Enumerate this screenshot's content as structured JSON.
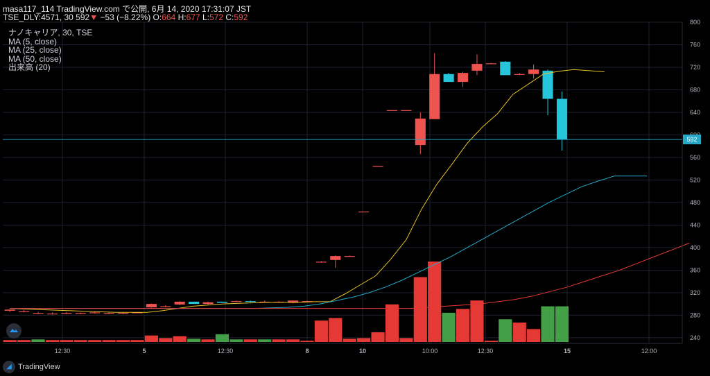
{
  "header": {
    "line1": "masa117_114 TradingView.com で公開, 6月 14, 2020 17:31:07 JST",
    "symbol": "TSE_DLY:4571, 30",
    "last": "592",
    "change": "−53 (−8.22%)",
    "o_label": "O:",
    "o": "664",
    "h_label": "H:",
    "h": "677",
    "l_label": "L:",
    "l": "572",
    "c_label": "C:",
    "c": "592"
  },
  "legend": [
    "ナノキャリア, 30, TSE",
    "MA (5, close)",
    "MA (25, close)",
    "MA (50, close)",
    "出来高 (20)"
  ],
  "footer": {
    "brand": "TradingView"
  },
  "colors": {
    "up": "#ef5350",
    "down": "#26c6da",
    "vol_up": "#e53935",
    "vol_down": "#43a047",
    "ma5": "#e6c229",
    "ma25": "#26a9c9",
    "ma50": "#e53935",
    "grid": "#1e2230",
    "last_line": "#26a9c9"
  },
  "chart_data": {
    "type": "candlestick",
    "ylim": [
      230,
      800
    ],
    "y_ticks": [
      240,
      280,
      320,
      360,
      400,
      440,
      480,
      520,
      560,
      600,
      640,
      680,
      720,
      760,
      800
    ],
    "x_tick_labels": [
      "12:30",
      "5",
      "12:30",
      "8",
      "10",
      "10:00",
      "12:30",
      "15",
      "12:00"
    ],
    "last_price": "592",
    "candles": [
      {
        "o": 288,
        "h": 290,
        "l": 286,
        "c": 290
      },
      {
        "o": 287,
        "h": 289,
        "l": 285,
        "c": 287
      },
      {
        "o": 284,
        "h": 286,
        "l": 282,
        "c": 284
      },
      {
        "o": 283,
        "h": 285,
        "l": 281,
        "c": 283
      },
      {
        "o": 284,
        "h": 286,
        "l": 282,
        "c": 284
      },
      {
        "o": 284,
        "h": 285,
        "l": 282,
        "c": 284
      },
      {
        "o": 285,
        "h": 286,
        "l": 283,
        "c": 285
      },
      {
        "o": 284,
        "h": 286,
        "l": 282,
        "c": 284
      },
      {
        "o": 284,
        "h": 286,
        "l": 282,
        "c": 284
      },
      {
        "o": 285,
        "h": 286,
        "l": 284,
        "c": 285
      },
      {
        "o": 294,
        "h": 301,
        "l": 293,
        "c": 300
      },
      {
        "o": 296,
        "h": 298,
        "l": 295,
        "c": 296
      },
      {
        "o": 299,
        "h": 305,
        "l": 298,
        "c": 304
      },
      {
        "o": 304,
        "h": 304,
        "l": 300,
        "c": 300
      },
      {
        "o": 300,
        "h": 304,
        "l": 299,
        "c": 303
      },
      {
        "o": 304,
        "h": 304,
        "l": 302,
        "c": 302
      },
      {
        "o": 305,
        "h": 306,
        "l": 304,
        "c": 305
      },
      {
        "o": 305,
        "h": 306,
        "l": 303,
        "c": 304
      },
      {
        "o": 304,
        "h": 306,
        "l": 303,
        "c": 304
      },
      {
        "o": 303,
        "h": 305,
        "l": 302,
        "c": 304
      },
      {
        "o": 302,
        "h": 306,
        "l": 301,
        "c": 306
      },
      {
        "o": 305,
        "h": 306,
        "l": 304,
        "c": 305
      },
      {
        "o": 374,
        "h": 376,
        "l": 373,
        "c": 375
      },
      {
        "o": 378,
        "h": 386,
        "l": 364,
        "c": 385
      },
      {
        "o": 385,
        "h": 386,
        "l": 385,
        "c": 385
      },
      {
        "o": 464,
        "h": 464,
        "l": 464,
        "c": 464
      },
      {
        "o": 545,
        "h": 545,
        "l": 545,
        "c": 545
      },
      {
        "o": 644,
        "h": 644,
        "l": 644,
        "c": 644
      },
      {
        "o": 644,
        "h": 644,
        "l": 644,
        "c": 644
      },
      {
        "o": 582,
        "h": 640,
        "l": 566,
        "c": 629
      },
      {
        "o": 628,
        "h": 745,
        "l": 628,
        "c": 708
      },
      {
        "o": 708,
        "h": 710,
        "l": 694,
        "c": 694
      },
      {
        "o": 694,
        "h": 712,
        "l": 685,
        "c": 710
      },
      {
        "o": 714,
        "h": 743,
        "l": 706,
        "c": 726
      },
      {
        "o": 727,
        "h": 728,
        "l": 727,
        "c": 727
      },
      {
        "o": 730,
        "h": 731,
        "l": 706,
        "c": 706
      },
      {
        "o": 708,
        "h": 710,
        "l": 706,
        "c": 708
      },
      {
        "o": 708,
        "h": 725,
        "l": 700,
        "c": 716
      },
      {
        "o": 714,
        "h": 716,
        "l": 635,
        "c": 664
      },
      {
        "o": 664,
        "h": 677,
        "l": 572,
        "c": 592
      }
    ],
    "volume": [
      {
        "v": 3,
        "up": true
      },
      {
        "v": 3,
        "up": true
      },
      {
        "v": 4,
        "up": false
      },
      {
        "v": 3,
        "up": true
      },
      {
        "v": 3,
        "up": true
      },
      {
        "v": 3,
        "up": true
      },
      {
        "v": 3,
        "up": true
      },
      {
        "v": 3,
        "up": true
      },
      {
        "v": 3,
        "up": true
      },
      {
        "v": 3,
        "up": true
      },
      {
        "v": 10,
        "up": true
      },
      {
        "v": 6,
        "up": true
      },
      {
        "v": 9,
        "up": true
      },
      {
        "v": 5,
        "up": false
      },
      {
        "v": 4,
        "up": true
      },
      {
        "v": 12,
        "up": false
      },
      {
        "v": 4,
        "up": false
      },
      {
        "v": 4,
        "up": true
      },
      {
        "v": 4,
        "up": false
      },
      {
        "v": 4,
        "up": true
      },
      {
        "v": 4,
        "up": true
      },
      {
        "v": 2,
        "up": true
      },
      {
        "v": 33,
        "up": true
      },
      {
        "v": 37,
        "up": true
      },
      {
        "v": 5,
        "up": true
      },
      {
        "v": 6,
        "up": true
      },
      {
        "v": 15,
        "up": true
      },
      {
        "v": 58,
        "up": true
      },
      {
        "v": 6,
        "up": true
      },
      {
        "v": 100,
        "up": true
      },
      {
        "v": 124,
        "up": true
      },
      {
        "v": 45,
        "up": false
      },
      {
        "v": 51,
        "up": true
      },
      {
        "v": 64,
        "up": true
      },
      {
        "v": 2,
        "up": true
      },
      {
        "v": 35,
        "up": false
      },
      {
        "v": 30,
        "up": true
      },
      {
        "v": 20,
        "up": true
      },
      {
        "v": 55,
        "up": false
      },
      {
        "v": 55,
        "up": false
      }
    ],
    "ma5": [
      292,
      291,
      290,
      289,
      288,
      287,
      286,
      285,
      285,
      285,
      288,
      292,
      296,
      298,
      300,
      301,
      302,
      303,
      303,
      303,
      304,
      304,
      318,
      334,
      350,
      380,
      414,
      468,
      512,
      548,
      585,
      614,
      638,
      672,
      690,
      708,
      713,
      716,
      714,
      712
    ],
    "ma25": [
      292,
      292,
      292,
      292,
      292,
      292,
      292,
      292,
      292,
      292,
      292,
      292,
      292,
      292,
      292,
      292,
      293,
      294,
      296,
      300,
      306,
      312,
      320,
      330,
      342,
      356,
      370,
      384,
      400,
      416,
      432,
      448,
      464,
      480,
      494,
      508,
      518,
      527,
      527,
      527
    ],
    "ma50": [
      292,
      292,
      292,
      292,
      292,
      292,
      292,
      292,
      292,
      292,
      292,
      292,
      292,
      292,
      292,
      292,
      292,
      292,
      292,
      292,
      292,
      292,
      292,
      292,
      294,
      296,
      298,
      300,
      304,
      308,
      314,
      322,
      330,
      340,
      350,
      360,
      372,
      384,
      396,
      408
    ]
  }
}
